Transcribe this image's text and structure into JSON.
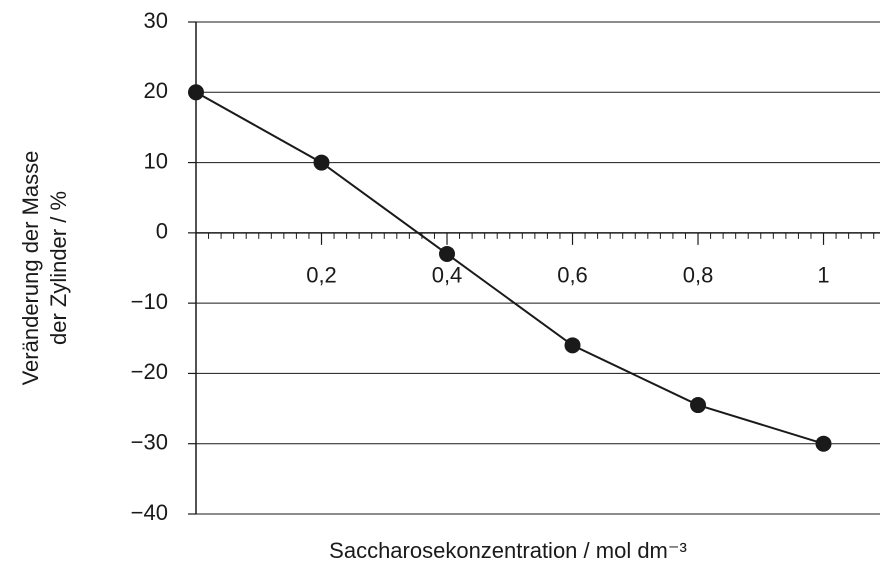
{
  "chart_data": {
    "type": "line",
    "ylabel": [
      "Veränderung der Masse",
      "der Zylinder / %"
    ],
    "xlabel": "Saccharosekonzentration / mol dm⁻³",
    "x": [
      0,
      0.2,
      0.4,
      0.6,
      0.8,
      1
    ],
    "series": [
      {
        "color": "#1a1a1a",
        "values": [
          20,
          10,
          -3,
          -16,
          -24.5,
          -30
        ]
      }
    ],
    "xlim": [
      0,
      1.09
    ],
    "xticks": [
      {
        "value": 0.2,
        "label": "0,2"
      },
      {
        "value": 0.4,
        "label": "0,4"
      },
      {
        "value": 0.6,
        "label": "0,6"
      },
      {
        "value": 0.8,
        "label": "0,8"
      },
      1
    ],
    "xminorticks": [
      0.02,
      0.04,
      0.06,
      0.08,
      0.1,
      0.12,
      0.14,
      0.16,
      0.18,
      0.22,
      0.24,
      0.26,
      0.28,
      0.3,
      0.32,
      0.34,
      0.36,
      0.38,
      0.42,
      0.44,
      0.46,
      0.48,
      0.5,
      0.52,
      0.54,
      0.56,
      0.58,
      0.62,
      0.64,
      0.66,
      0.68,
      0.7,
      0.72,
      0.74,
      0.76,
      0.78,
      0.82,
      0.84,
      0.86,
      0.88,
      0.9,
      0.92,
      0.94,
      0.96,
      0.98,
      1.02,
      1.04,
      1.06,
      1.08
    ],
    "ylim": [
      -40,
      30
    ],
    "yticks": [
      30,
      20,
      10,
      0,
      {
        "value": -10,
        "label": "−10"
      },
      {
        "value": -20,
        "label": "−20"
      },
      {
        "value": -30,
        "label": "−30"
      },
      {
        "value": -40,
        "label": "−40"
      }
    ],
    "grid": true
  }
}
